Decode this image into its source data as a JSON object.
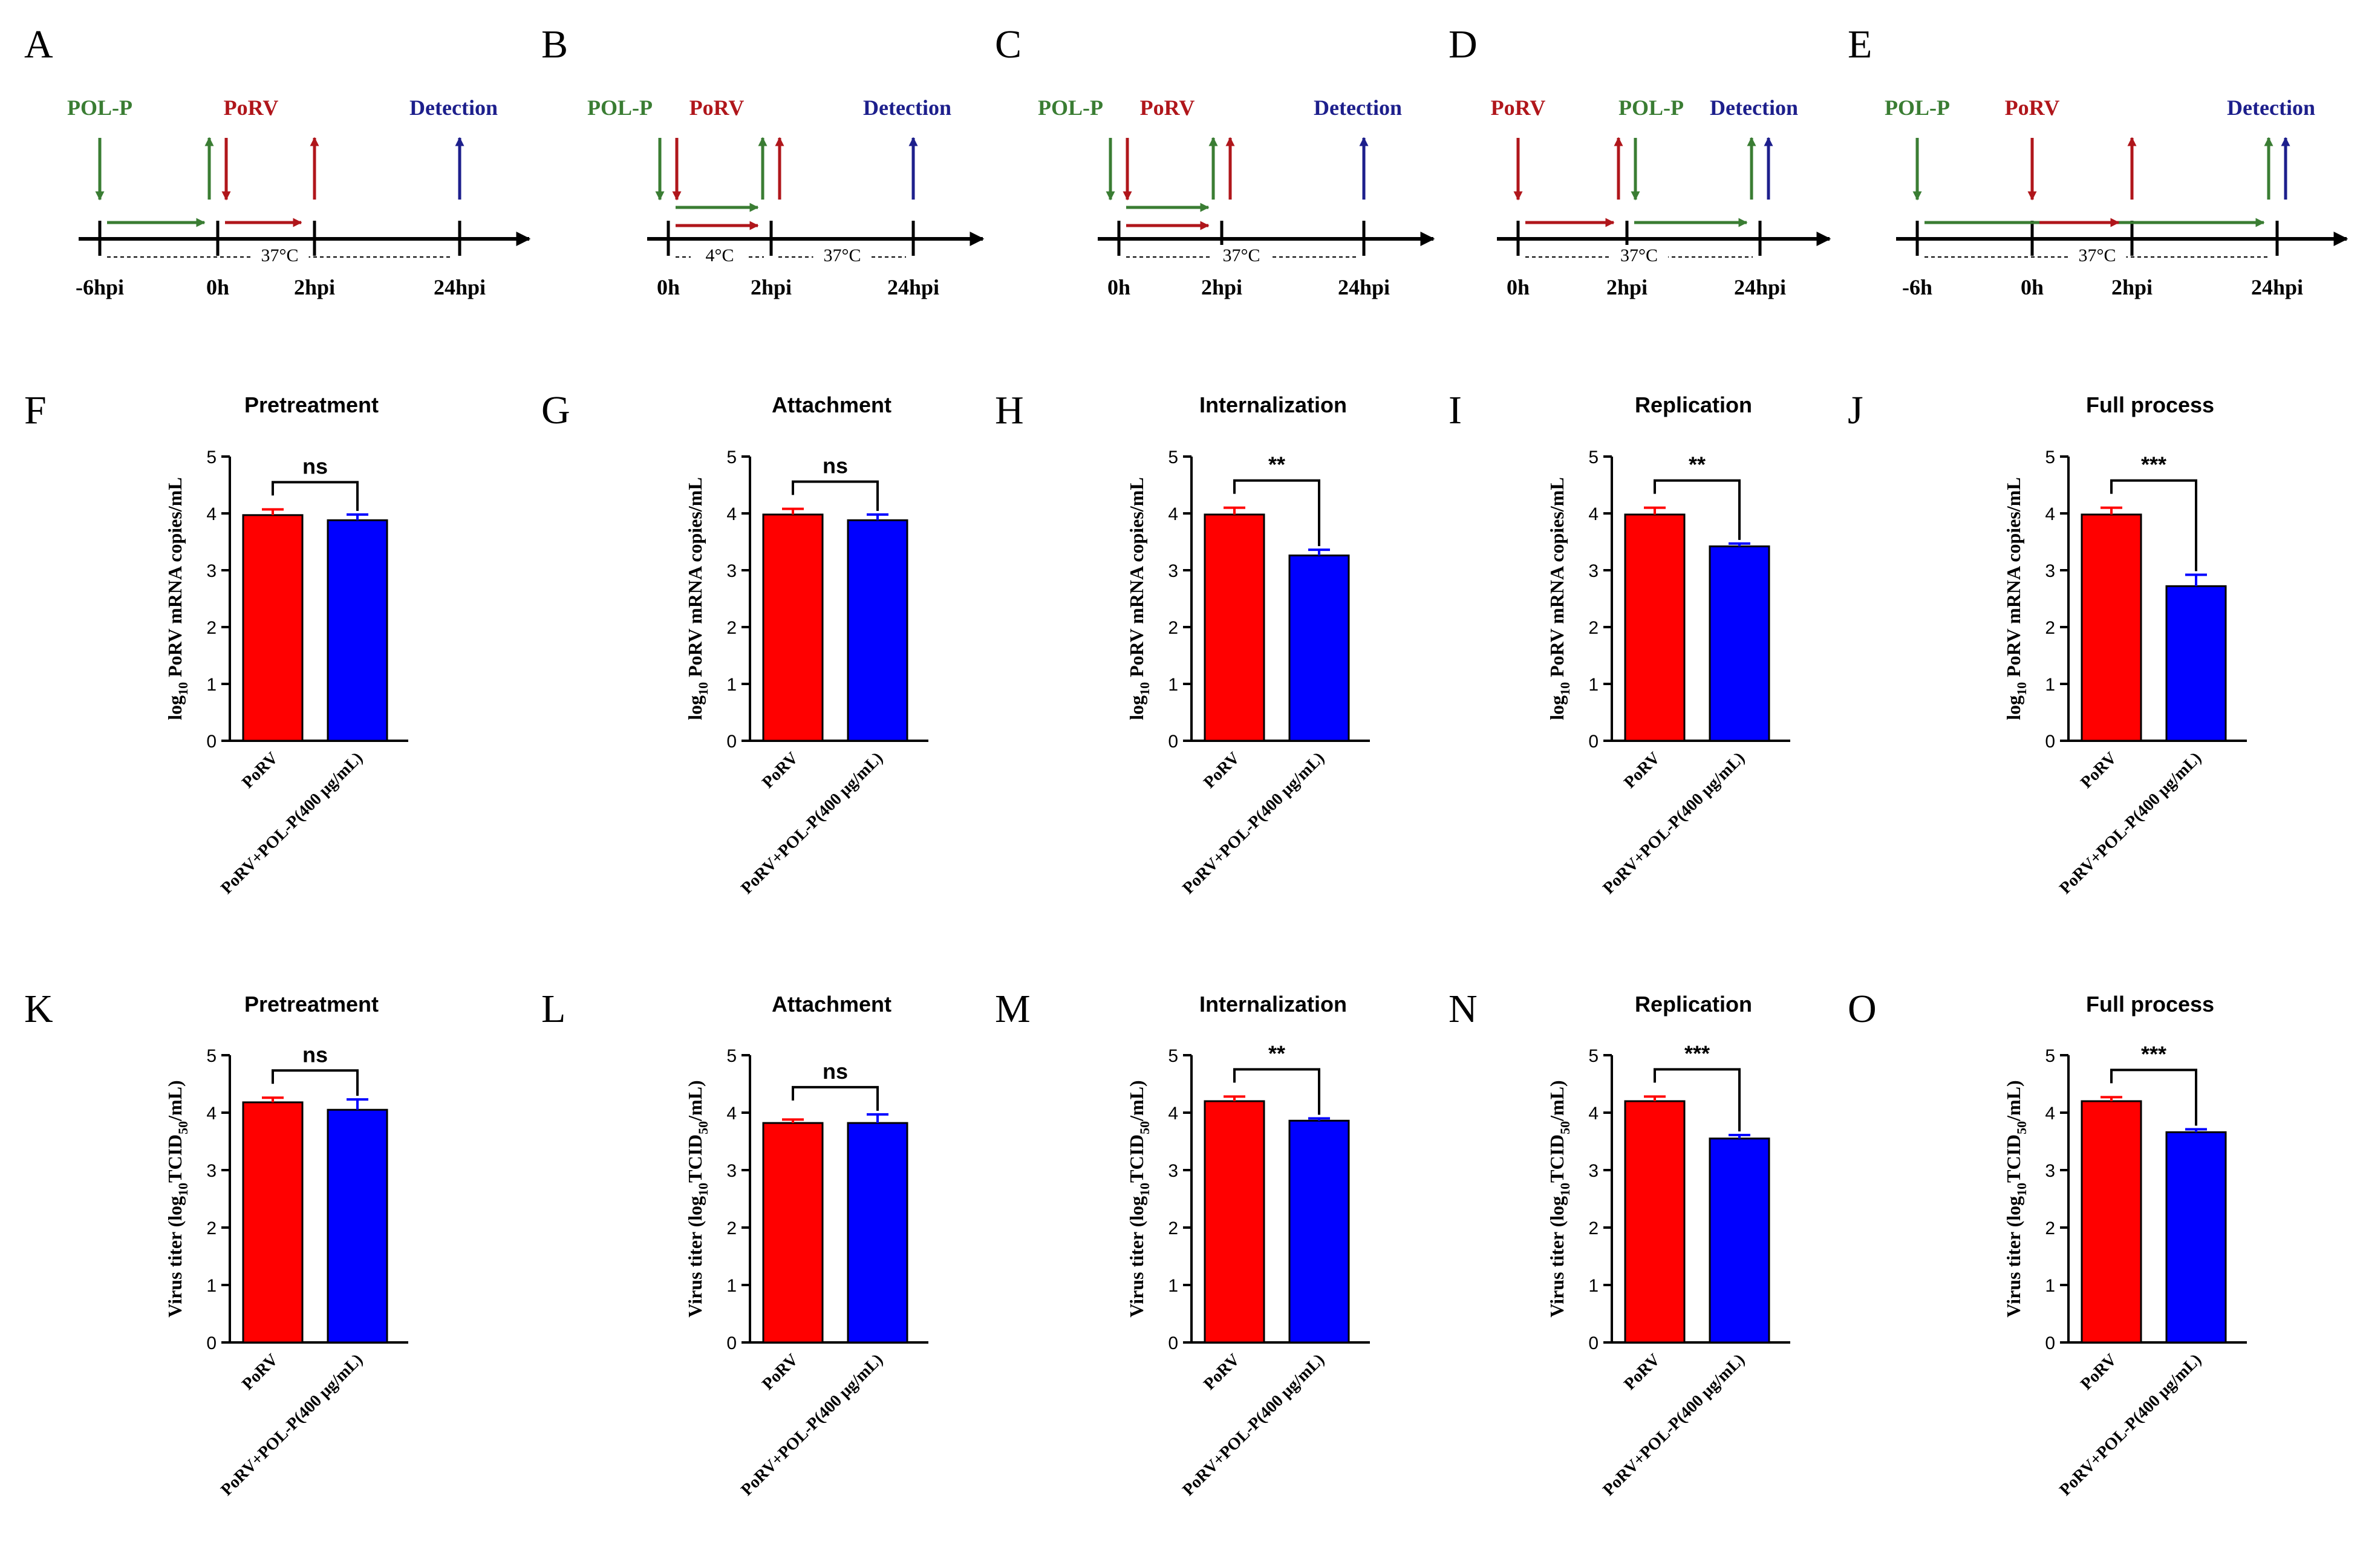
{
  "colors": {
    "pol_p": "#3a7d33",
    "porv": "#b0161b",
    "detection": "#1d1f8c",
    "bar_red": "#ff0000",
    "bar_blue": "#0000ff",
    "axis": "#000000"
  },
  "timelines": [
    {
      "panel": "A",
      "labels": [
        {
          "text": "POL-P",
          "role": "pol_p"
        },
        {
          "text": "PoRV",
          "role": "porv"
        },
        {
          "text": "Detection",
          "role": "detection"
        }
      ],
      "ticks": [
        "-6hpi",
        "0h",
        "2hpi",
        "24hpi"
      ],
      "tick_times": [
        -6,
        0,
        2,
        24
      ],
      "temperature_notes": [
        {
          "text": "37°C",
          "from": -6,
          "to": 24
        }
      ],
      "events": [
        {
          "role": "pol_p",
          "dir": "down",
          "t": -6
        },
        {
          "role": "pol_p",
          "dir": "up",
          "t": 0
        },
        {
          "role": "porv",
          "dir": "down",
          "t": 0
        },
        {
          "role": "porv",
          "dir": "up",
          "t": 2
        },
        {
          "role": "detection",
          "dir": "up",
          "t": 24
        }
      ],
      "spans": [
        {
          "role": "pol_p",
          "from": -6,
          "to": 0
        },
        {
          "role": "porv",
          "from": 0,
          "to": 2
        }
      ]
    },
    {
      "panel": "B",
      "labels": [
        {
          "text": "POL-P",
          "role": "pol_p"
        },
        {
          "text": "PoRV",
          "role": "porv"
        },
        {
          "text": "Detection",
          "role": "detection"
        }
      ],
      "ticks": [
        "0h",
        "2hpi",
        "24hpi"
      ],
      "tick_times": [
        0,
        2,
        24
      ],
      "temperature_notes": [
        {
          "text": "4°C",
          "from": 0,
          "to": 2
        },
        {
          "text": "37°C",
          "from": 2,
          "to": 24
        }
      ],
      "events": [
        {
          "role": "pol_p",
          "dir": "down",
          "t": 0
        },
        {
          "role": "porv",
          "dir": "down",
          "t": 0
        },
        {
          "role": "pol_p",
          "dir": "up",
          "t": 2
        },
        {
          "role": "porv",
          "dir": "up",
          "t": 2
        },
        {
          "role": "detection",
          "dir": "up",
          "t": 24
        }
      ],
      "spans": [
        {
          "role": "pol_p",
          "from": 0,
          "to": 2
        },
        {
          "role": "porv",
          "from": 0,
          "to": 2
        }
      ]
    },
    {
      "panel": "C",
      "labels": [
        {
          "text": "POL-P",
          "role": "pol_p"
        },
        {
          "text": "PoRV",
          "role": "porv"
        },
        {
          "text": "Detection",
          "role": "detection"
        }
      ],
      "ticks": [
        "0h",
        "2hpi",
        "24hpi"
      ],
      "tick_times": [
        0,
        2,
        24
      ],
      "temperature_notes": [
        {
          "text": "37°C",
          "from": 0,
          "to": 24
        }
      ],
      "events": [
        {
          "role": "pol_p",
          "dir": "down",
          "t": 0
        },
        {
          "role": "porv",
          "dir": "down",
          "t": 0
        },
        {
          "role": "pol_p",
          "dir": "up",
          "t": 2
        },
        {
          "role": "porv",
          "dir": "up",
          "t": 2
        },
        {
          "role": "detection",
          "dir": "up",
          "t": 24
        }
      ],
      "spans": [
        {
          "role": "pol_p",
          "from": 0,
          "to": 2
        },
        {
          "role": "porv",
          "from": 0,
          "to": 2
        }
      ]
    },
    {
      "panel": "D",
      "labels": [
        {
          "text": "PoRV",
          "role": "porv"
        },
        {
          "text": "POL-P",
          "role": "pol_p"
        },
        {
          "text": "Detection",
          "role": "detection"
        }
      ],
      "ticks": [
        "0h",
        "2hpi",
        "24hpi"
      ],
      "tick_times": [
        0,
        2,
        24
      ],
      "temperature_notes": [
        {
          "text": "37°C",
          "from": 0,
          "to": 24
        }
      ],
      "events": [
        {
          "role": "porv",
          "dir": "down",
          "t": 0
        },
        {
          "role": "porv",
          "dir": "up",
          "t": 2
        },
        {
          "role": "pol_p",
          "dir": "down",
          "t": 2
        },
        {
          "role": "pol_p",
          "dir": "up",
          "t": 24
        },
        {
          "role": "detection",
          "dir": "up",
          "t": 24
        }
      ],
      "spans": [
        {
          "role": "porv",
          "from": 0,
          "to": 2
        },
        {
          "role": "pol_p",
          "from": 2,
          "to": 24
        }
      ]
    },
    {
      "panel": "E",
      "labels": [
        {
          "text": "POL-P",
          "role": "pol_p"
        },
        {
          "text": "PoRV",
          "role": "porv"
        },
        {
          "text": "Detection",
          "role": "detection"
        }
      ],
      "ticks": [
        "-6h",
        "0h",
        "2hpi",
        "24hpi"
      ],
      "tick_times": [
        -6,
        0,
        2,
        24
      ],
      "temperature_notes": [
        {
          "text": "37°C",
          "from": -6,
          "to": 24
        }
      ],
      "events": [
        {
          "role": "pol_p",
          "dir": "down",
          "t": -6
        },
        {
          "role": "porv",
          "dir": "down",
          "t": 0
        },
        {
          "role": "porv",
          "dir": "up",
          "t": 2
        },
        {
          "role": "pol_p",
          "dir": "up",
          "t": 24
        },
        {
          "role": "detection",
          "dir": "up",
          "t": 24
        }
      ],
      "spans": [
        {
          "role": "pol_p",
          "from": -6,
          "to": 24
        },
        {
          "role": "porv",
          "from": 0,
          "to": 2
        }
      ]
    }
  ],
  "chart_data": [
    {
      "panel": "F",
      "type": "bar",
      "title": "Pretreatment",
      "ylabel_main": "log",
      "ylabel_sub": "10",
      "ylabel_rest": " PoRV mRNA copies/mL",
      "categories": [
        "PoRV",
        "PoRV+POL-P(400 μg/mL)"
      ],
      "values": [
        3.97,
        3.88
      ],
      "errors": [
        0.1,
        0.1
      ],
      "ylim": [
        0,
        5
      ],
      "yticks": [
        "0",
        "1",
        "2",
        "3",
        "4",
        "5"
      ],
      "significance": "ns"
    },
    {
      "panel": "G",
      "type": "bar",
      "title": "Attachment",
      "ylabel_main": "log",
      "ylabel_sub": "10",
      "ylabel_rest": " PoRV mRNA copies/mL",
      "categories": [
        "PoRV",
        "PoRV+POL-P(400 μg/mL)"
      ],
      "values": [
        3.98,
        3.88
      ],
      "errors": [
        0.1,
        0.1
      ],
      "ylim": [
        0,
        5
      ],
      "yticks": [
        "0",
        "1",
        "2",
        "3",
        "4",
        "5"
      ],
      "significance": "ns"
    },
    {
      "panel": "H",
      "type": "bar",
      "title": "Internalization",
      "ylabel_main": "log",
      "ylabel_sub": "10",
      "ylabel_rest": " PoRV mRNA copies/mL",
      "categories": [
        "PoRV",
        "PoRV+POL-P(400 μg/mL)"
      ],
      "values": [
        3.98,
        3.26
      ],
      "errors": [
        0.12,
        0.1
      ],
      "ylim": [
        0,
        5
      ],
      "yticks": [
        "0",
        "1",
        "2",
        "3",
        "4",
        "5"
      ],
      "significance": "**"
    },
    {
      "panel": "I",
      "type": "bar",
      "title": "Replication",
      "ylabel_main": "log",
      "ylabel_sub": "10",
      "ylabel_rest": " PoRV mRNA copies/mL",
      "categories": [
        "PoRV",
        "PoRV+POL-P(400 μg/mL)"
      ],
      "values": [
        3.98,
        3.42
      ],
      "errors": [
        0.12,
        0.05
      ],
      "ylim": [
        0,
        5
      ],
      "yticks": [
        "0",
        "1",
        "2",
        "3",
        "4",
        "5"
      ],
      "significance": "**"
    },
    {
      "panel": "J",
      "type": "bar",
      "title": "Full process",
      "ylabel_main": "log",
      "ylabel_sub": "10",
      "ylabel_rest": " PoRV mRNA copies/mL",
      "categories": [
        "PoRV",
        "PoRV+POL-P(400 μg/mL)"
      ],
      "values": [
        3.98,
        2.72
      ],
      "errors": [
        0.12,
        0.2
      ],
      "ylim": [
        0,
        5
      ],
      "yticks": [
        "0",
        "1",
        "2",
        "3",
        "4",
        "5"
      ],
      "significance": "***"
    },
    {
      "panel": "K",
      "type": "bar",
      "title": "Pretreatment",
      "ylabel_main": "Virus titer (log",
      "ylabel_sub": "10",
      "ylabel_rest": "TCID",
      "ylabel_sub2": "50",
      "ylabel_end": "/mL)",
      "categories": [
        "PoRV",
        "PoRV+POL-P(400 μg/mL)"
      ],
      "values": [
        4.18,
        4.05
      ],
      "errors": [
        0.08,
        0.18
      ],
      "ylim": [
        0,
        5
      ],
      "yticks": [
        "0",
        "1",
        "2",
        "3",
        "4",
        "5"
      ],
      "significance": "ns"
    },
    {
      "panel": "L",
      "type": "bar",
      "title": "Attachment",
      "ylabel_main": "Virus titer (log",
      "ylabel_sub": "10",
      "ylabel_rest": "TCID",
      "ylabel_sub2": "50",
      "ylabel_end": "/mL)",
      "categories": [
        "PoRV",
        "PoRV+POL-P(400 μg/mL)"
      ],
      "values": [
        3.82,
        3.82
      ],
      "errors": [
        0.06,
        0.15
      ],
      "ylim": [
        0,
        5
      ],
      "yticks": [
        "0",
        "1",
        "2",
        "3",
        "4",
        "5"
      ],
      "significance": "ns"
    },
    {
      "panel": "M",
      "type": "bar",
      "title": "Internalization",
      "ylabel_main": "Virus titer (log",
      "ylabel_sub": "10",
      "ylabel_rest": "TCID",
      "ylabel_sub2": "50",
      "ylabel_end": "/mL)",
      "categories": [
        "PoRV",
        "PoRV+POL-P(400 μg/mL)"
      ],
      "values": [
        4.2,
        3.86
      ],
      "errors": [
        0.08,
        0.04
      ],
      "ylim": [
        0,
        5
      ],
      "yticks": [
        "0",
        "1",
        "2",
        "3",
        "4",
        "5"
      ],
      "significance": "**"
    },
    {
      "panel": "N",
      "type": "bar",
      "title": "Replication",
      "ylabel_main": "Virus titer (log",
      "ylabel_sub": "10",
      "ylabel_rest": "TCID",
      "ylabel_sub2": "50",
      "ylabel_end": "/mL)",
      "categories": [
        "PoRV",
        "PoRV+POL-P(400 μg/mL)"
      ],
      "values": [
        4.2,
        3.55
      ],
      "errors": [
        0.08,
        0.06
      ],
      "ylim": [
        0,
        5
      ],
      "yticks": [
        "0",
        "1",
        "2",
        "3",
        "4",
        "5"
      ],
      "significance": "***"
    },
    {
      "panel": "O",
      "type": "bar",
      "title": "Full process",
      "ylabel_main": "Virus titer (log",
      "ylabel_sub": "10",
      "ylabel_rest": "TCID",
      "ylabel_sub2": "50",
      "ylabel_end": "/mL)",
      "categories": [
        "PoRV",
        "PoRV+POL-P(400 μg/mL)"
      ],
      "values": [
        4.2,
        3.66
      ],
      "errors": [
        0.07,
        0.05
      ],
      "ylim": [
        0,
        5
      ],
      "yticks": [
        "0",
        "1",
        "2",
        "3",
        "4",
        "5"
      ],
      "significance": "***"
    }
  ]
}
